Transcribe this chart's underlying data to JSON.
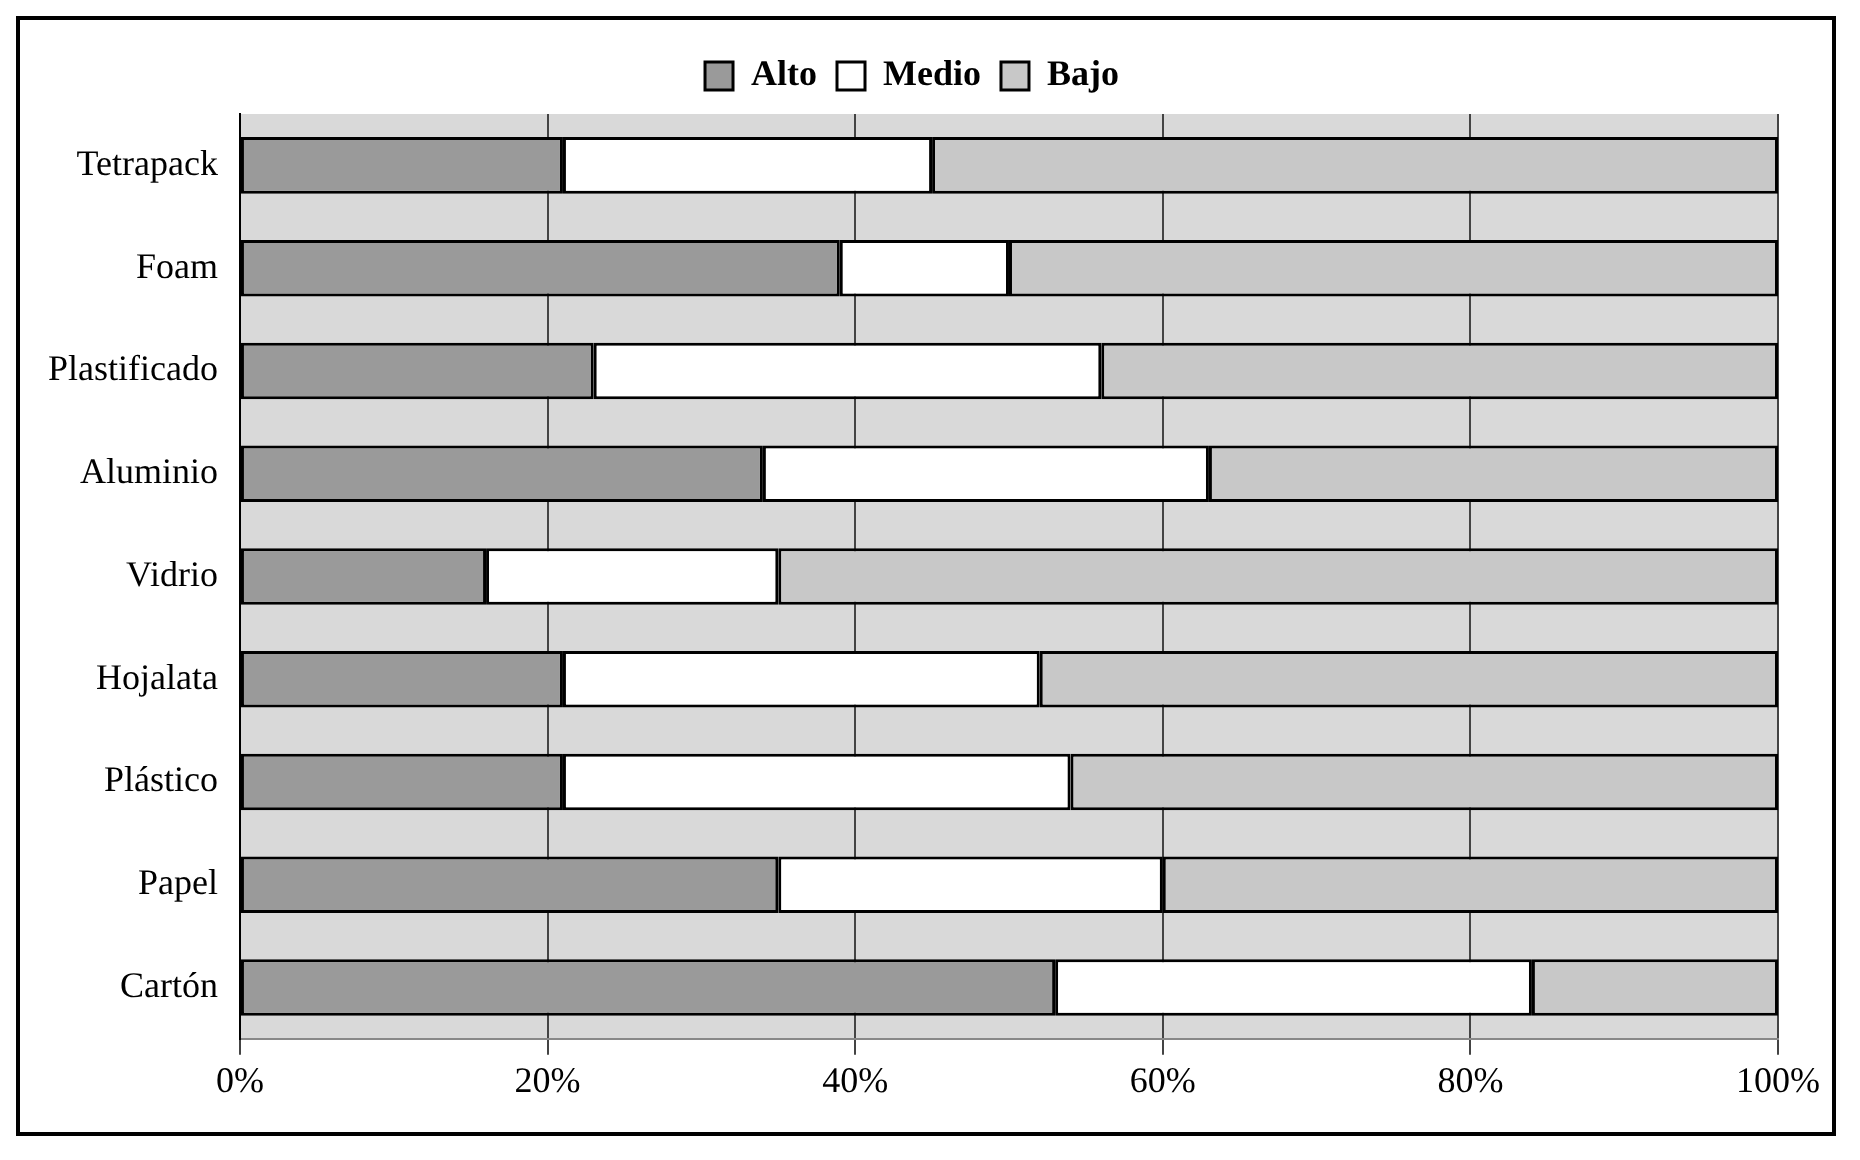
{
  "chart_data": {
    "type": "bar",
    "orientation": "horizontal",
    "stacked": true,
    "categories": [
      "Tetrapack",
      "Foam",
      "Plastificado",
      "Aluminio",
      "Vidrio",
      "Hojalata",
      "Plástico",
      "Papel",
      "Cartón"
    ],
    "series": [
      {
        "name": "Alto",
        "color": "#9a9a9a",
        "values": [
          21,
          39,
          23,
          34,
          16,
          21,
          21,
          35,
          53
        ]
      },
      {
        "name": "Medio",
        "color": "#ffffff",
        "values": [
          24,
          11,
          33,
          29,
          19,
          31,
          33,
          25,
          31
        ]
      },
      {
        "name": "Bajo",
        "color": "#c8c8c8",
        "values": [
          55,
          50,
          44,
          37,
          65,
          48,
          46,
          40,
          16
        ]
      }
    ],
    "xlim": [
      0,
      100
    ],
    "xticks": [
      {
        "value": 0,
        "label": "0%"
      },
      {
        "value": 20,
        "label": "20%"
      },
      {
        "value": 40,
        "label": "40%"
      },
      {
        "value": 60,
        "label": "60%"
      },
      {
        "value": 80,
        "label": "80%"
      },
      {
        "value": 100,
        "label": "100%"
      }
    ],
    "grid": "x",
    "legend": "top"
  }
}
